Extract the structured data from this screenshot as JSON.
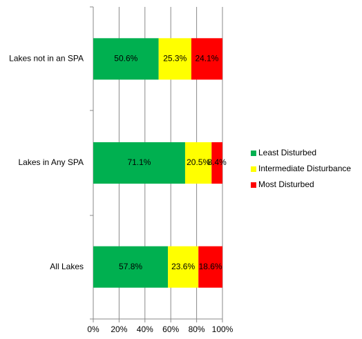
{
  "chart_data": {
    "type": "stacked-bar-horizontal",
    "categories": [
      "Lakes not in an SPA",
      "Lakes in Any SPA",
      "All Lakes"
    ],
    "series": [
      {
        "name": "Least Disturbed",
        "color": "#00b050",
        "values": [
          50.6,
          71.1,
          57.8
        ],
        "value_labels": [
          "50.6%",
          "71.1%",
          "57.8%"
        ]
      },
      {
        "name": "Intermediate Disturbance",
        "color": "#ffff00",
        "values": [
          25.3,
          20.5,
          23.6
        ],
        "value_labels": [
          "25.3%",
          "20.5%",
          "23.6%"
        ]
      },
      {
        "name": "Most Disturbed",
        "color": "#ff0000",
        "values": [
          24.1,
          8.4,
          18.6
        ],
        "value_labels": [
          "24.1%",
          "8.4%",
          "18.6%"
        ]
      }
    ],
    "xlim": [
      0,
      100
    ],
    "xticks": [
      {
        "value": 0,
        "label": "0%"
      },
      {
        "value": 20,
        "label": "20%"
      },
      {
        "value": 40,
        "label": "40%"
      },
      {
        "value": 60,
        "label": "60%"
      },
      {
        "value": 80,
        "label": "80%"
      },
      {
        "value": 100,
        "label": "100%"
      }
    ],
    "grid": true,
    "legend": "right"
  }
}
